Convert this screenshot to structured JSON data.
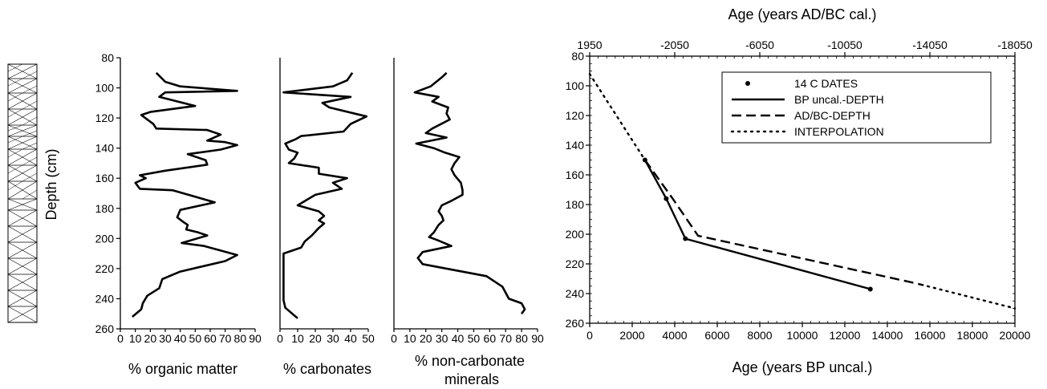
{
  "chart_data": [
    {
      "type": "line",
      "id": "organic",
      "xlabel": "% organic matter",
      "ylabel": "Depth (cm)",
      "ylim": [
        80,
        260
      ],
      "y_ticks": [
        80,
        100,
        120,
        140,
        160,
        180,
        200,
        220,
        240,
        260
      ],
      "xlim": [
        0,
        90
      ],
      "x_ticks": [
        0,
        10,
        20,
        30,
        40,
        50,
        60,
        70,
        80,
        90
      ],
      "series": [
        {
          "points": [
            [
              24,
              90
            ],
            [
              30,
              96
            ],
            [
              40,
              99
            ],
            [
              78,
              102
            ],
            [
              30,
              103
            ],
            [
              26,
              106
            ],
            [
              50,
              112
            ],
            [
              20,
              116
            ],
            [
              14,
              118
            ],
            [
              18,
              121
            ],
            [
              22,
              124
            ],
            [
              24,
              127
            ],
            [
              58,
              128
            ],
            [
              67,
              131
            ],
            [
              58,
              135
            ],
            [
              70,
              136
            ],
            [
              78,
              138
            ],
            [
              67,
              141
            ],
            [
              45,
              144
            ],
            [
              57,
              148
            ],
            [
              58,
              151
            ],
            [
              30,
              155
            ],
            [
              13,
              158
            ],
            [
              17,
              160
            ],
            [
              10,
              163
            ],
            [
              13,
              167
            ],
            [
              35,
              168
            ],
            [
              63,
              176
            ],
            [
              40,
              181
            ],
            [
              38,
              186
            ],
            [
              42,
              189
            ],
            [
              45,
              191
            ],
            [
              44,
              194
            ],
            [
              52,
              196
            ],
            [
              58,
              198
            ],
            [
              41,
              203
            ],
            [
              56,
              205
            ],
            [
              78,
              211
            ],
            [
              70,
              215
            ],
            [
              40,
              222
            ],
            [
              28,
              227
            ],
            [
              26,
              233
            ],
            [
              18,
              238
            ],
            [
              15,
              243
            ],
            [
              14,
              247
            ],
            [
              8,
              252
            ]
          ]
        }
      ]
    },
    {
      "type": "line",
      "id": "carbonates",
      "xlabel": "% carbonates",
      "ylim": [
        80,
        260
      ],
      "xlim": [
        0,
        50
      ],
      "x_ticks": [
        0,
        10,
        20,
        30,
        40,
        50
      ],
      "series": [
        {
          "points": [
            [
              41,
              90
            ],
            [
              38,
              95
            ],
            [
              30,
              99
            ],
            [
              2,
              103
            ],
            [
              40,
              106
            ],
            [
              24,
              110
            ],
            [
              28,
              113
            ],
            [
              49,
              119
            ],
            [
              40,
              124
            ],
            [
              36,
              129
            ],
            [
              12,
              132
            ],
            [
              9,
              134
            ],
            [
              3,
              137
            ],
            [
              5,
              141
            ],
            [
              10,
              143
            ],
            [
              8,
              147
            ],
            [
              5,
              150
            ],
            [
              22,
              153
            ],
            [
              22,
              157
            ],
            [
              38,
              160
            ],
            [
              30,
              163
            ],
            [
              35,
              167
            ],
            [
              20,
              171
            ],
            [
              10,
              178
            ],
            [
              22,
              182
            ],
            [
              25,
              185
            ],
            [
              22,
              188
            ],
            [
              25,
              190
            ],
            [
              22,
              193
            ],
            [
              18,
              198
            ],
            [
              14,
              202
            ],
            [
              12,
              206
            ],
            [
              2,
              210
            ],
            [
              2,
              217
            ],
            [
              2,
              230
            ],
            [
              2,
              241
            ],
            [
              3,
              246
            ],
            [
              10,
              253
            ]
          ]
        }
      ]
    },
    {
      "type": "line",
      "id": "noncarbonate",
      "xlabel": "% non-carbonate minerals",
      "ylim": [
        80,
        260
      ],
      "xlim": [
        0,
        90
      ],
      "x_ticks": [
        0,
        10,
        20,
        30,
        40,
        50,
        60,
        70,
        80,
        90
      ],
      "series": [
        {
          "points": [
            [
              33,
              90
            ],
            [
              30,
              93
            ],
            [
              23,
              99
            ],
            [
              13,
              103
            ],
            [
              28,
              106
            ],
            [
              24,
              109
            ],
            [
              34,
              113
            ],
            [
              33,
              117
            ],
            [
              35,
              121
            ],
            [
              24,
              127
            ],
            [
              20,
              130
            ],
            [
              33,
              133
            ],
            [
              14,
              137
            ],
            [
              25,
              140
            ],
            [
              32,
              143
            ],
            [
              41,
              146
            ],
            [
              38,
              150
            ],
            [
              36,
              154
            ],
            [
              38,
              158
            ],
            [
              42,
              163
            ],
            [
              43,
              168
            ],
            [
              43,
              171
            ],
            [
              36,
              175
            ],
            [
              30,
              178
            ],
            [
              28,
              182
            ],
            [
              30,
              185
            ],
            [
              31,
              188
            ],
            [
              28,
              191
            ],
            [
              25,
              196
            ],
            [
              22,
              199
            ],
            [
              27,
              201
            ],
            [
              36,
              205
            ],
            [
              18,
              209
            ],
            [
              15,
              213
            ],
            [
              18,
              217
            ],
            [
              58,
              225
            ],
            [
              68,
              232
            ],
            [
              72,
              240
            ],
            [
              80,
              243
            ],
            [
              82,
              247
            ],
            [
              80,
              250
            ]
          ]
        }
      ]
    },
    {
      "type": "line",
      "id": "age_depth",
      "title": "Age (years AD/BC cal.)",
      "xlabel": "Age (years BP uncal.)",
      "xlim": [
        0,
        20000
      ],
      "x_ticks": [
        0,
        2000,
        4000,
        6000,
        8000,
        10000,
        12000,
        14000,
        16000,
        18000,
        20000
      ],
      "top_x_ticks": [
        "1950",
        "-2050",
        "-6050",
        "-10050",
        "-14050",
        "-18050"
      ],
      "ylim": [
        80,
        260
      ],
      "y_ticks": [
        80,
        100,
        120,
        140,
        160,
        180,
        200,
        220,
        240,
        260
      ],
      "legend_position": "top-right",
      "series": [
        {
          "name": "14 C DATES",
          "style": "dots",
          "points": [
            [
              2600,
              150
            ],
            [
              3600,
              176
            ],
            [
              4500,
              203
            ],
            [
              13200,
              237
            ]
          ]
        },
        {
          "name": "BP uncal.-DEPTH",
          "style": "solid",
          "points": [
            [
              2600,
              150
            ],
            [
              3600,
              176
            ],
            [
              4500,
              203
            ],
            [
              13200,
              237
            ]
          ]
        },
        {
          "name": "AD/BC-DEPTH",
          "style": "dashed",
          "points": [
            [
              2600,
              150
            ],
            [
              3900,
              176
            ],
            [
              5100,
              201
            ],
            [
              15000,
              232
            ],
            [
              15600,
              234
            ]
          ]
        },
        {
          "name": "INTERPOLATION",
          "style": "dotted",
          "points": [
            [
              0,
              92
            ],
            [
              2600,
              150
            ]
          ],
          "points2": [
            [
              15600,
              234
            ],
            [
              20000,
              250
            ]
          ]
        }
      ]
    }
  ]
}
